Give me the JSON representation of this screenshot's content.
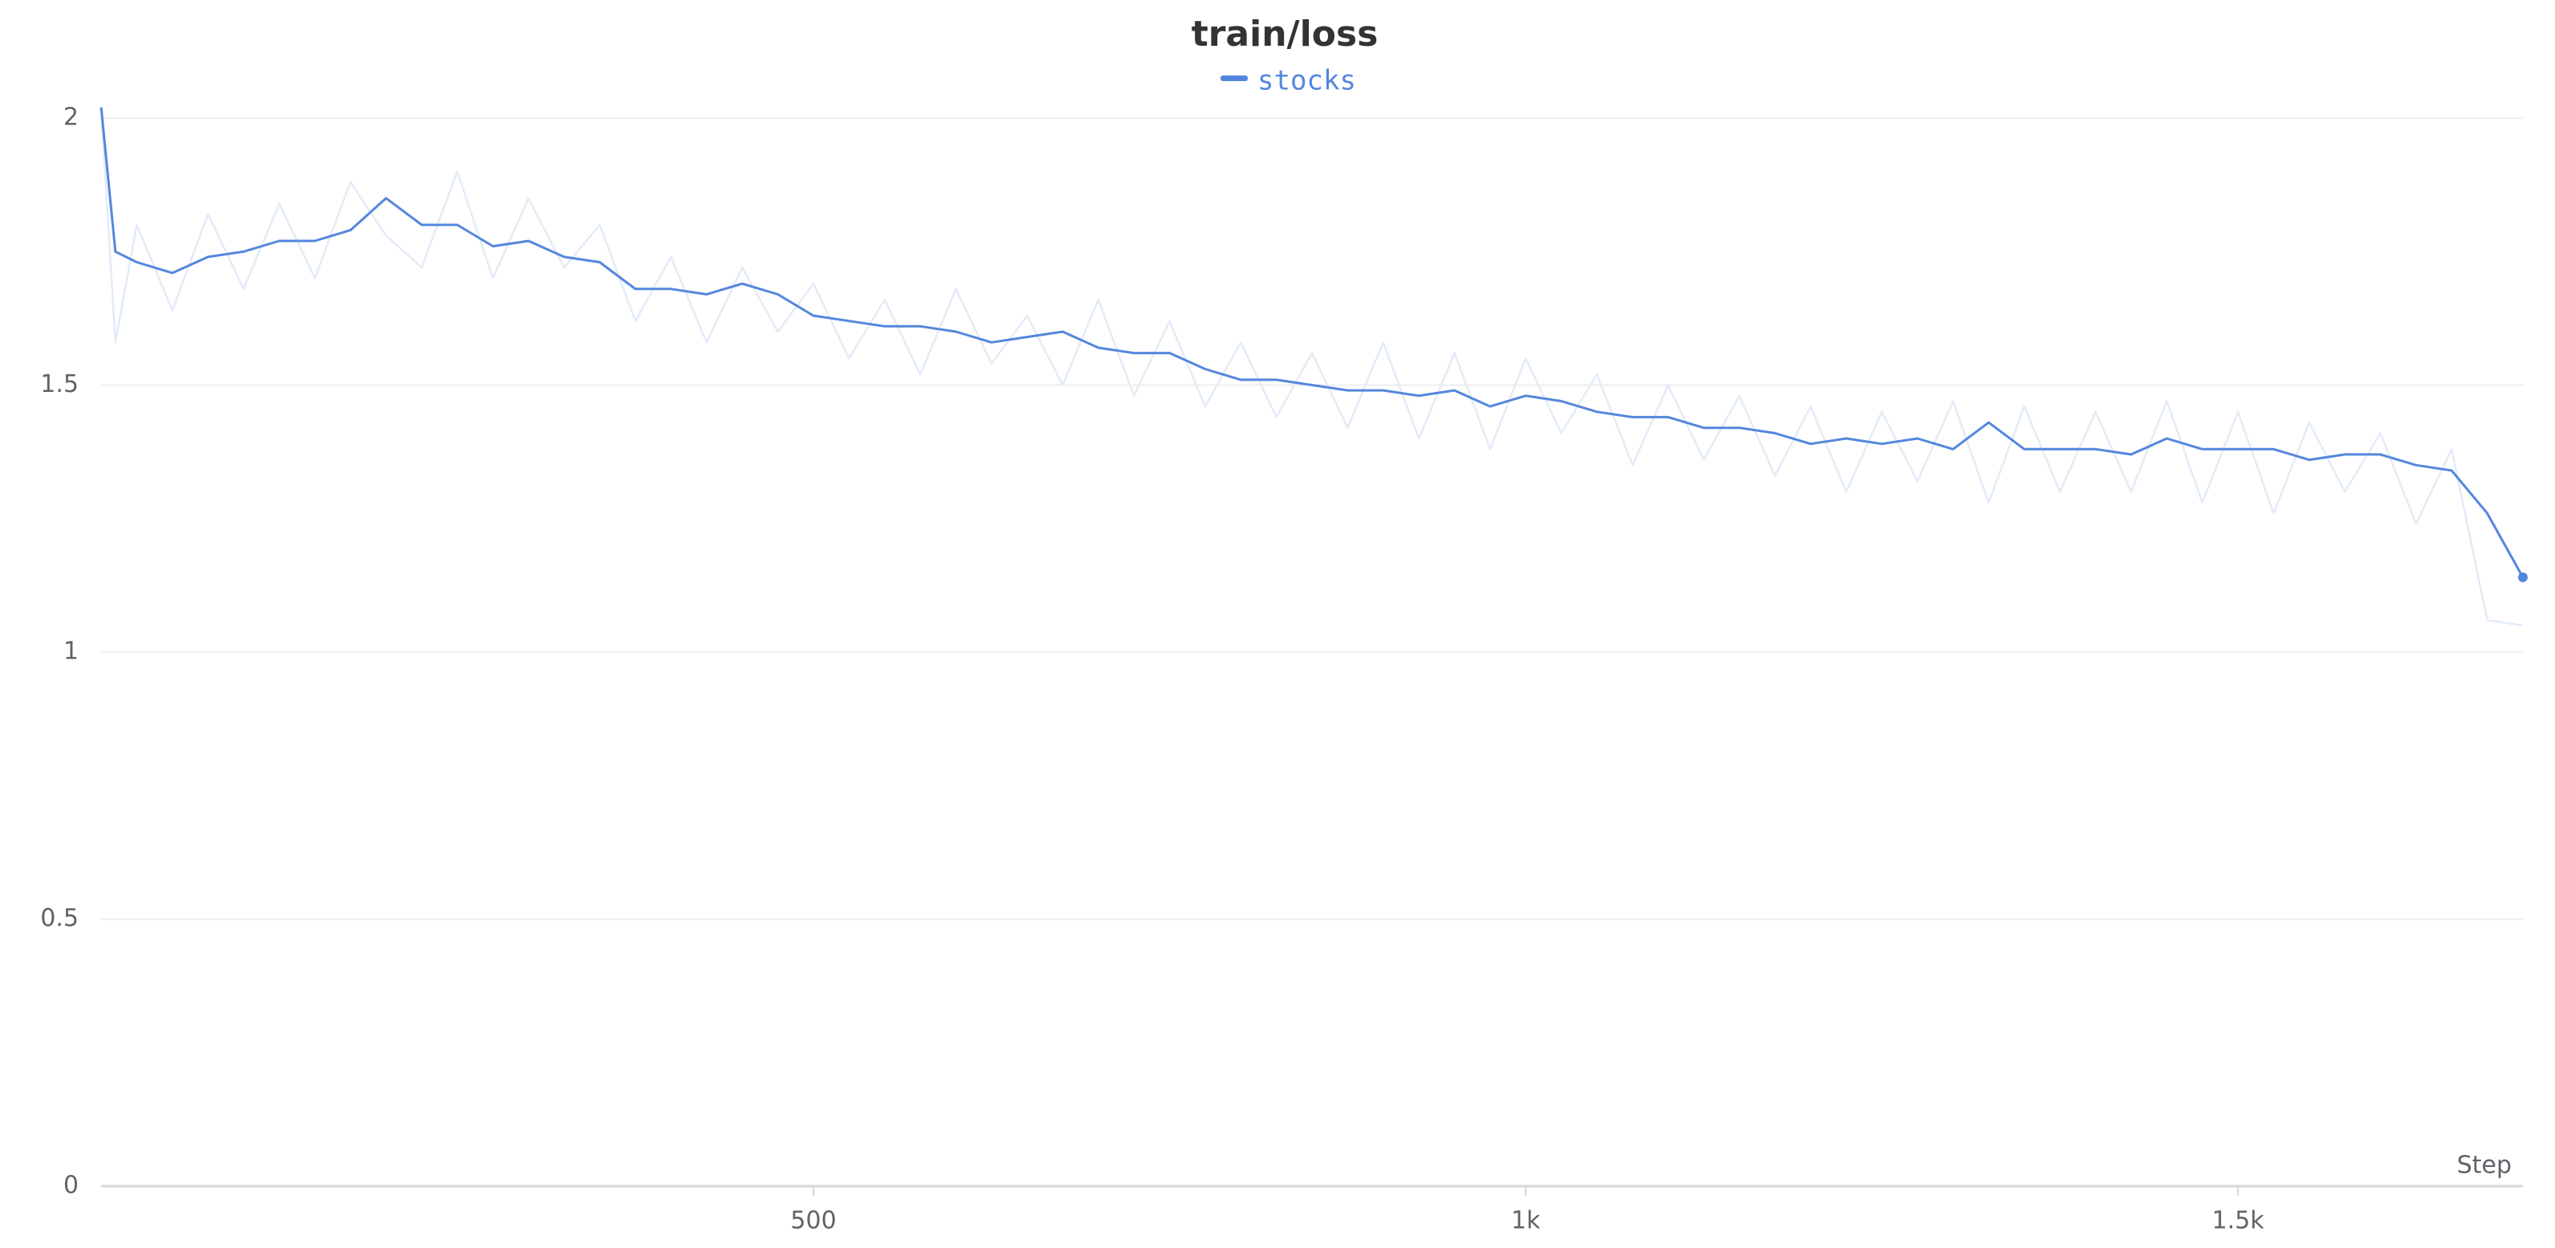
{
  "chart_data": {
    "type": "line",
    "title": "train/loss",
    "x_label": "Step",
    "x": [
      0,
      10,
      25,
      50,
      75,
      100,
      125,
      150,
      175,
      200,
      225,
      250,
      275,
      300,
      325,
      350,
      375,
      400,
      425,
      450,
      475,
      500,
      525,
      550,
      575,
      600,
      625,
      650,
      675,
      700,
      725,
      750,
      775,
      800,
      825,
      850,
      875,
      900,
      925,
      950,
      975,
      1000,
      1025,
      1050,
      1075,
      1100,
      1125,
      1150,
      1175,
      1200,
      1225,
      1250,
      1275,
      1300,
      1325,
      1350,
      1375,
      1400,
      1425,
      1450,
      1475,
      1500,
      1525,
      1550,
      1575,
      1600,
      1625,
      1650,
      1675,
      1700
    ],
    "series": [
      {
        "color": "#e3ebf8",
        "values": [
          2.02,
          1.58,
          1.8,
          1.64,
          1.82,
          1.68,
          1.84,
          1.7,
          1.88,
          1.78,
          1.72,
          1.9,
          1.7,
          1.85,
          1.72,
          1.8,
          1.62,
          1.74,
          1.58,
          1.72,
          1.6,
          1.69,
          1.55,
          1.66,
          1.52,
          1.68,
          1.54,
          1.63,
          1.5,
          1.66,
          1.48,
          1.62,
          1.46,
          1.58,
          1.44,
          1.56,
          1.42,
          1.58,
          1.4,
          1.56,
          1.38,
          1.55,
          1.41,
          1.52,
          1.35,
          1.5,
          1.36,
          1.48,
          1.33,
          1.46,
          1.3,
          1.45,
          1.32,
          1.47,
          1.28,
          1.46,
          1.3,
          1.45,
          1.3,
          1.47,
          1.28,
          1.45,
          1.26,
          1.43,
          1.3,
          1.41,
          1.24,
          1.38,
          1.06,
          1.05
        ]
      },
      {
        "name": "stocks",
        "color": "#5387dd",
        "values": [
          2.02,
          1.75,
          1.73,
          1.71,
          1.74,
          1.75,
          1.77,
          1.77,
          1.79,
          1.85,
          1.8,
          1.8,
          1.76,
          1.77,
          1.74,
          1.73,
          1.68,
          1.68,
          1.67,
          1.69,
          1.67,
          1.63,
          1.62,
          1.61,
          1.61,
          1.6,
          1.58,
          1.59,
          1.6,
          1.57,
          1.56,
          1.56,
          1.53,
          1.51,
          1.51,
          1.5,
          1.49,
          1.49,
          1.48,
          1.49,
          1.46,
          1.48,
          1.47,
          1.45,
          1.44,
          1.44,
          1.42,
          1.42,
          1.41,
          1.39,
          1.4,
          1.39,
          1.4,
          1.38,
          1.43,
          1.38,
          1.38,
          1.38,
          1.37,
          1.4,
          1.38,
          1.38,
          1.38,
          1.36,
          1.37,
          1.37,
          1.35,
          1.34,
          1.26,
          1.14
        ]
      }
    ],
    "xlim": [
      0,
      1700
    ],
    "xticks": [
      500,
      {
        "value": 1000,
        "label": "1k"
      },
      {
        "value": 1500,
        "label": "1.5k"
      }
    ],
    "ylim": [
      0,
      2
    ],
    "yticks": [
      0,
      0.5,
      1,
      1.5,
      2
    ],
    "grid": true
  }
}
